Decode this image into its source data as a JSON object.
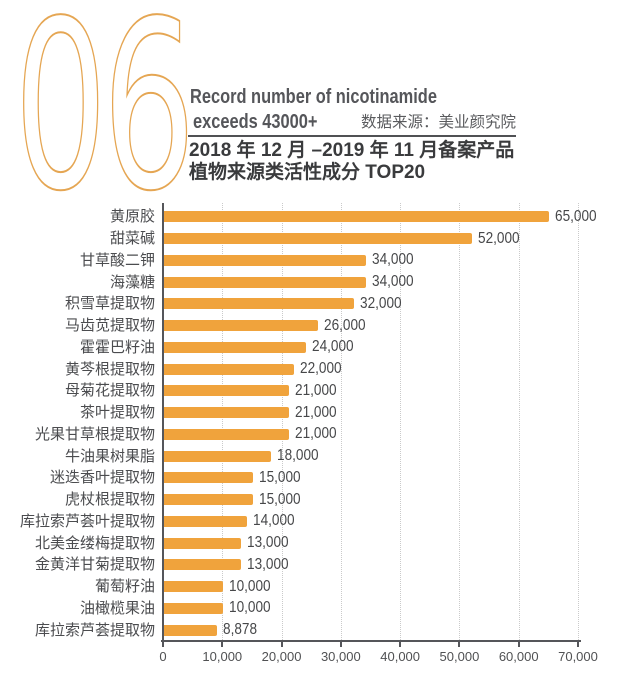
{
  "header": {
    "section_number": "06",
    "subtitle_line1": "Record number of nicotinamide",
    "subtitle_line2": "exceeds 43000+",
    "data_source": "数据来源：美业颜究院",
    "title_line1": "2018 年 12 月 –2019 年 11 月备案产品",
    "title_line2": "植物来源类活性成分 TOP20"
  },
  "colors": {
    "accent_orange": "#F0A33C",
    "number_outline": "#E5A653",
    "axis_gray": "#55565A",
    "grid_gray": "#CACACA",
    "text_dark": "#3A3B3D"
  },
  "chart_data": {
    "type": "bar",
    "orientation": "horizontal",
    "title": "2018 年 12 月 –2019 年 11 月备案产品 植物来源类活性成分 TOP20",
    "categories": [
      "黄原胶",
      "甜菜碱",
      "甘草酸二钾",
      "海藻糖",
      "积雪草提取物",
      "马齿苋提取物",
      "霍霍巴籽油",
      "黄芩根提取物",
      "母菊花提取物",
      "茶叶提取物",
      "光果甘草根提取物",
      "牛油果树果脂",
      "迷迭香叶提取物",
      "虎杖根提取物",
      "库拉索芦荟叶提取物",
      "北美金缕梅提取物",
      "金黄洋甘菊提取物",
      "葡萄籽油",
      "油橄榄果油",
      "库拉索芦荟提取物"
    ],
    "values": [
      65000,
      52000,
      34000,
      34000,
      32000,
      26000,
      24000,
      22000,
      21000,
      21000,
      21000,
      18000,
      15000,
      15000,
      14000,
      13000,
      13000,
      10000,
      10000,
      8878
    ],
    "value_labels": [
      "65,000",
      "52,000",
      "34,000",
      "34,000",
      "32,000",
      "26,000",
      "24,000",
      "22,000",
      "21,000",
      "21,000",
      "21,000",
      "18,000",
      "15,000",
      "15,000",
      "14,000",
      "13,000",
      "13,000",
      "10,000",
      "10,000",
      "8,878"
    ],
    "xlim": [
      0,
      70000
    ],
    "x_tick_labels": [
      "0",
      "10,000",
      "20,000",
      "30,000",
      "40,000",
      "50,000",
      "60,000",
      "70,000"
    ],
    "grid": "vertical dotted gridlines at each 10,000",
    "legend": "none",
    "bar_color": "#F0A33C"
  }
}
